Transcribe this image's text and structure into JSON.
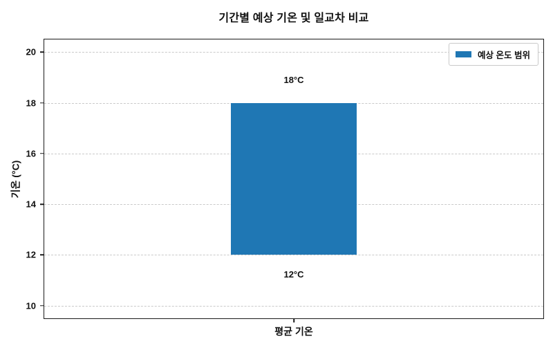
{
  "chart_data": {
    "type": "bar",
    "title": "기간별 예상 기온 및 일교차 비교",
    "ylabel": "기온 (°C)",
    "xlabel": "",
    "categories": [
      "평균 기온"
    ],
    "bars": [
      {
        "category": "평균 기온",
        "low": 12,
        "high": 18,
        "low_label": "12°C",
        "high_label": "18°C"
      }
    ],
    "yticks": [
      10,
      12,
      14,
      16,
      18,
      20
    ],
    "ylim": [
      9.5,
      20.5
    ],
    "grid": "horizontal dashed",
    "legend": {
      "position": "upper-right",
      "entries": [
        {
          "label": "예상 온도 범위",
          "color": "#1f77b4"
        }
      ]
    },
    "colors": {
      "bar": "#1f77b4",
      "grid": "#c9c9c9",
      "spine": "#1a1a1a",
      "text": "#111111"
    }
  }
}
